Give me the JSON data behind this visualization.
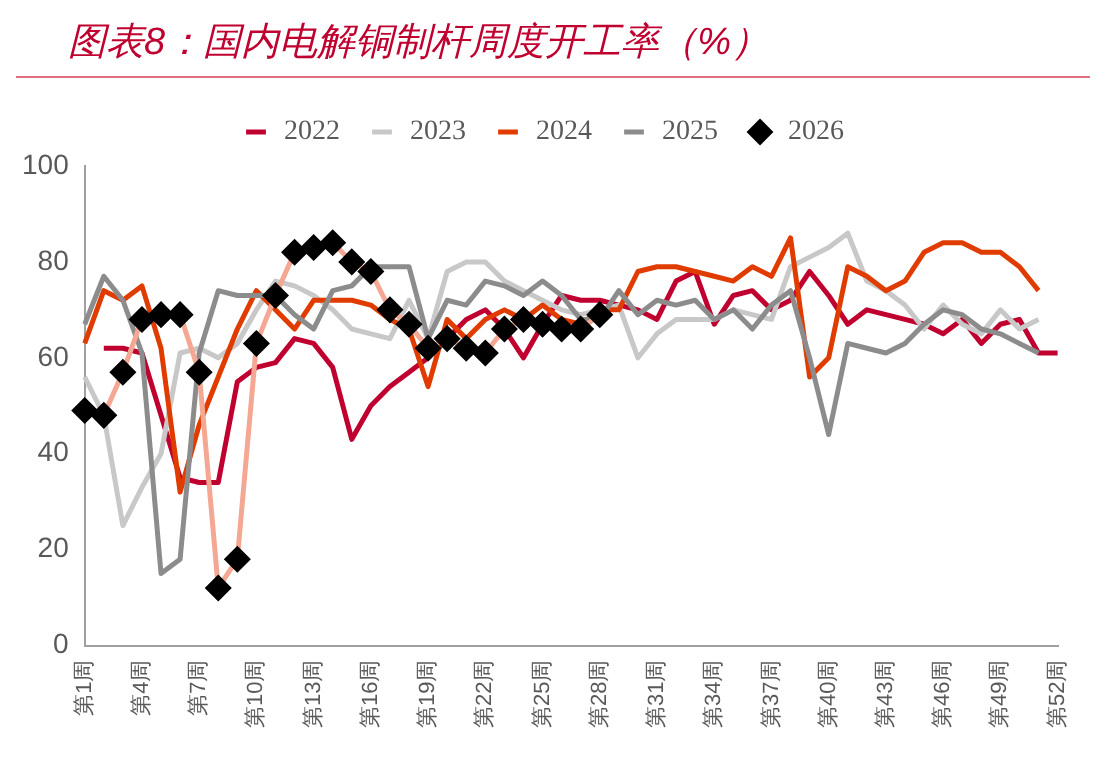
{
  "chart_data": {
    "type": "line",
    "title": "图表8：国内电解铜制杆周度开工率（%）",
    "categories": [
      "第1周",
      null,
      null,
      "第4周",
      null,
      null,
      "第7周",
      null,
      null,
      "第10周",
      null,
      null,
      "第13周",
      null,
      null,
      "第16周",
      null,
      null,
      "第19周",
      null,
      null,
      "第22周",
      null,
      null,
      "第25周",
      null,
      null,
      "第28周",
      null,
      null,
      "第31周",
      null,
      null,
      "第34周",
      null,
      null,
      "第37周",
      null,
      null,
      "第40周",
      null,
      null,
      "第43周",
      null,
      null,
      "第46周",
      null,
      null,
      "第49周",
      null,
      null,
      "第52周"
    ],
    "series": [
      {
        "name": "2022",
        "color": "#c0002f",
        "values": [
          null,
          62,
          62,
          61,
          48,
          35,
          34,
          34,
          55,
          58,
          59,
          64,
          63,
          58,
          43,
          50,
          54,
          57,
          60,
          64,
          68,
          70,
          66,
          60,
          67,
          73,
          72,
          72,
          71,
          70,
          68,
          76,
          78,
          67,
          73,
          74,
          70,
          72,
          78,
          73,
          67,
          70,
          69,
          68,
          67,
          65,
          68,
          63,
          67,
          68,
          61,
          61
        ]
      },
      {
        "name": "2023",
        "color": "#c8c8c8",
        "values": [
          56,
          48,
          25,
          33,
          40,
          61,
          62,
          60,
          63,
          70,
          76,
          75,
          73,
          70,
          66,
          65,
          64,
          72,
          64,
          78,
          80,
          80,
          76,
          74,
          72,
          70,
          69,
          70,
          71,
          60,
          65,
          68,
          68,
          68,
          70,
          69,
          68,
          79,
          81,
          83,
          86,
          76,
          74,
          71,
          66,
          71,
          67,
          65,
          70,
          66,
          68,
          null
        ]
      },
      {
        "name": "2024",
        "color": "#e03c00",
        "values": [
          63,
          74,
          72,
          75,
          62,
          32,
          46,
          56,
          66,
          74,
          70,
          66,
          72,
          72,
          72,
          71,
          68,
          66,
          54,
          68,
          64,
          68,
          70,
          68,
          71,
          68,
          67,
          70,
          70,
          78,
          79,
          79,
          78,
          77,
          76,
          79,
          77,
          85,
          56,
          60,
          79,
          77,
          74,
          76,
          82,
          84,
          84,
          82,
          82,
          79,
          74,
          null
        ]
      },
      {
        "name": "2025",
        "color": "#8c8c8c",
        "values": [
          67,
          77,
          72,
          61,
          15,
          18,
          61,
          74,
          73,
          73,
          73,
          69,
          66,
          74,
          75,
          79,
          79,
          79,
          64,
          72,
          71,
          76,
          75,
          73,
          76,
          73,
          68,
          68,
          74,
          69,
          72,
          71,
          72,
          68,
          70,
          66,
          71,
          74,
          60,
          44,
          63,
          62,
          61,
          63,
          67,
          70,
          69,
          66,
          65,
          63,
          61,
          null
        ]
      },
      {
        "name": "2026",
        "color": "#f4a894",
        "marker": "diamond",
        "values": [
          49,
          48,
          57,
          68,
          69,
          69,
          57,
          12,
          18,
          63,
          73,
          82,
          83,
          84,
          80,
          78,
          70,
          67,
          62,
          64,
          62,
          61,
          66,
          68,
          67,
          66,
          66,
          69,
          null,
          null,
          null,
          null,
          null,
          null,
          null,
          null,
          null,
          null,
          null,
          null,
          null,
          null,
          null,
          null,
          null,
          null,
          null,
          null,
          null,
          null,
          null,
          null
        ]
      }
    ],
    "ylim": [
      0,
      100
    ],
    "yticks": [
      0,
      20,
      40,
      60,
      80,
      100
    ],
    "grid": false,
    "legend": "top"
  }
}
